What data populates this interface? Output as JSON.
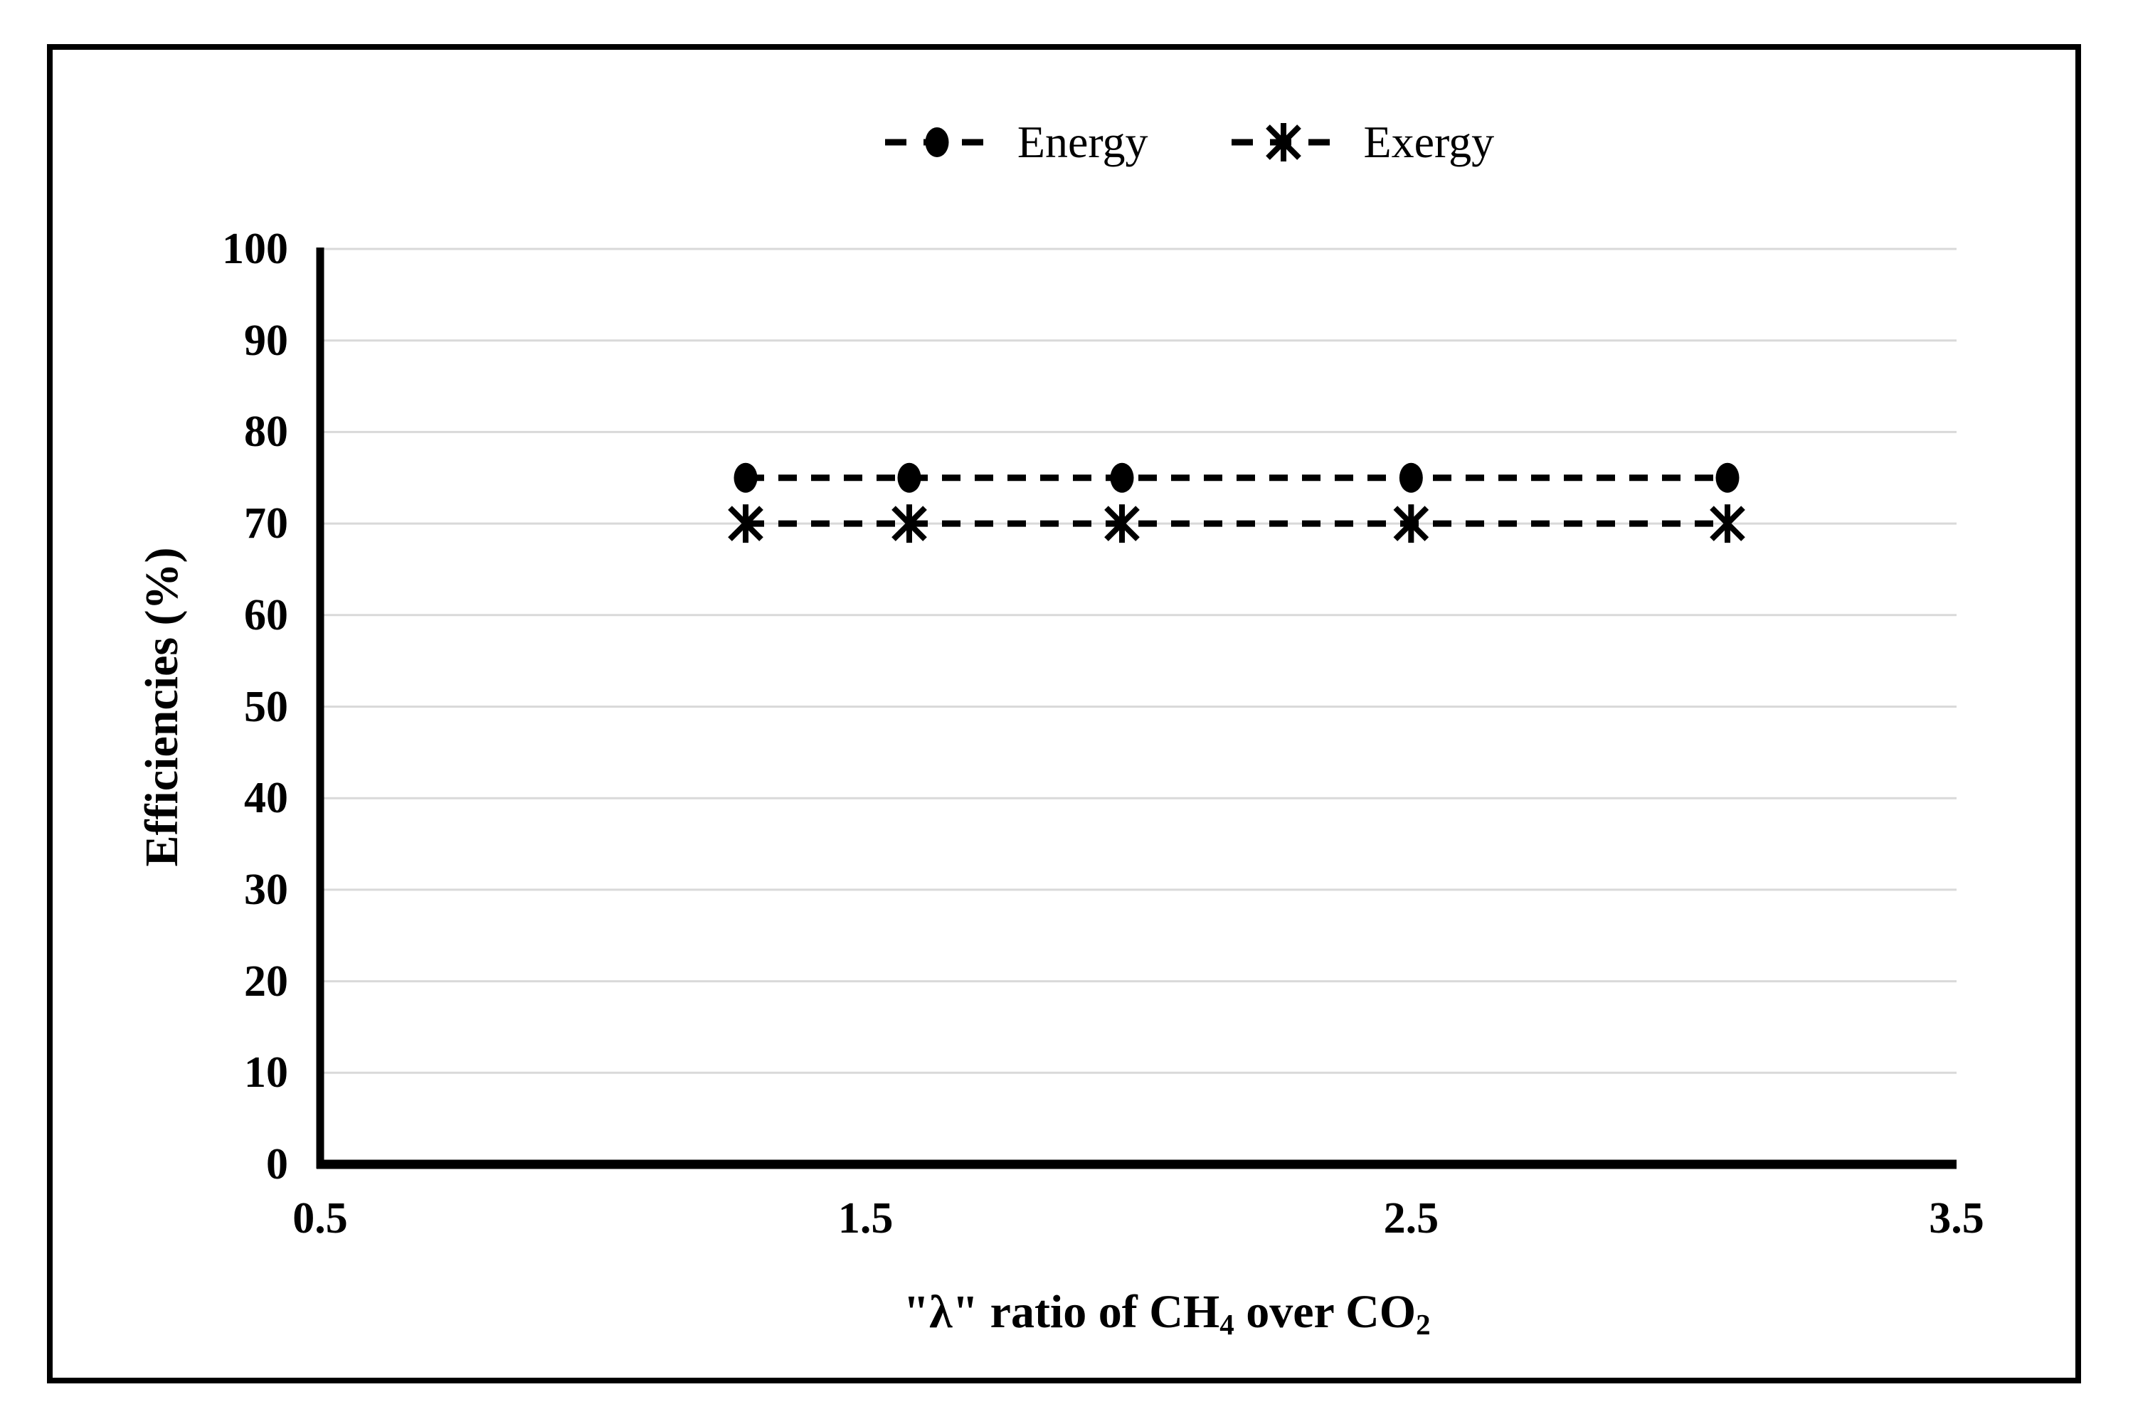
{
  "page": {
    "background": "#ffffff",
    "frame_border_color": "#000000"
  },
  "legend": {
    "position": "top-center",
    "items": [
      {
        "label": "Energy",
        "marker": "circle"
      },
      {
        "label": "Exergy",
        "marker": "asterisk"
      }
    ]
  },
  "chart_data": {
    "type": "line",
    "title": "",
    "xlabel": "\"λ\" ratio of CH₄ over CO₂",
    "xlabel_rich": [
      {
        "text": "\"λ\" ratio of CH",
        "sub": false
      },
      {
        "text": "4",
        "sub": true
      },
      {
        "text": " over CO",
        "sub": false
      },
      {
        "text": "2",
        "sub": true
      }
    ],
    "ylabel": "Efficiencies (%)",
    "x": [
      1.28,
      1.58,
      1.97,
      2.5,
      3.08
    ],
    "series": [
      {
        "name": "Energy",
        "marker": "circle",
        "line_style": "dashed",
        "color": "#000000",
        "values": [
          75,
          75,
          75,
          75,
          75
        ]
      },
      {
        "name": "Exergy",
        "marker": "asterisk",
        "line_style": "dashed",
        "color": "#000000",
        "values": [
          70,
          70,
          70,
          70,
          70
        ]
      }
    ],
    "xlim": [
      0.5,
      3.5
    ],
    "ylim": [
      0,
      100
    ],
    "xticks": [
      0.5,
      1.5,
      2.5,
      3.5
    ],
    "yticks": [
      0,
      10,
      20,
      30,
      40,
      50,
      60,
      70,
      80,
      90,
      100
    ],
    "grid": "horizontal",
    "grid_color": "#d9d9d9",
    "axis_color": "#000000",
    "legend_position": "top"
  }
}
